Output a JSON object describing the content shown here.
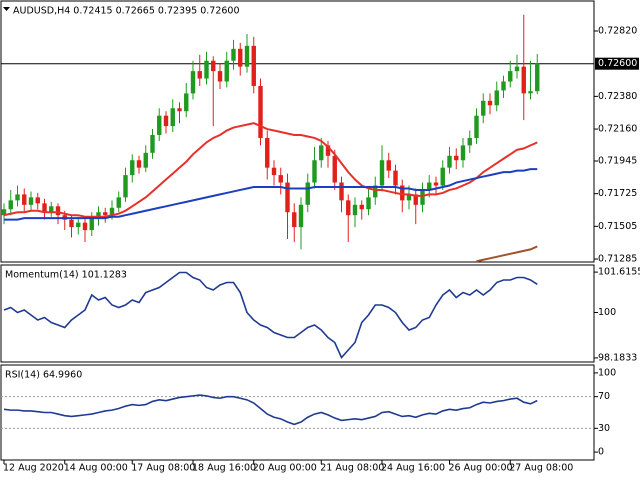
{
  "chart_data": [
    {
      "type": "candlestick",
      "title": "AUDUSD,H4  0.72415 0.72665 0.72395 0.72600",
      "up_color": "#1f9a1f",
      "down_color": "#e0201b",
      "open": [
        0.7158,
        0.7162,
        0.7168,
        0.7172,
        0.7165,
        0.717,
        0.7166,
        0.716,
        0.7164,
        0.7158,
        0.7155,
        0.715,
        0.7153,
        0.7148,
        0.7156,
        0.716,
        0.7158,
        0.7163,
        0.717,
        0.7185,
        0.7195,
        0.719,
        0.72,
        0.7212,
        0.7225,
        0.7218,
        0.723,
        0.7228,
        0.724,
        0.7255,
        0.725,
        0.7262,
        0.7255,
        0.7248,
        0.7262,
        0.727,
        0.7258,
        0.7272,
        0.7245,
        0.721,
        0.719,
        0.7185,
        0.718,
        0.716,
        0.715,
        0.7165,
        0.718,
        0.7195,
        0.7205,
        0.7198,
        0.718,
        0.7168,
        0.7158,
        0.7165,
        0.7162,
        0.717,
        0.7178,
        0.7195,
        0.7188,
        0.7178,
        0.7168,
        0.7172,
        0.7165,
        0.7175,
        0.718,
        0.7178,
        0.719,
        0.7198,
        0.7195,
        0.7205,
        0.721,
        0.7225,
        0.7235,
        0.7232,
        0.7242,
        0.7248,
        0.7255,
        0.7258,
        0.724,
        0.72415
      ],
      "high": [
        0.7166,
        0.7175,
        0.7178,
        0.7176,
        0.7174,
        0.7173,
        0.7169,
        0.7167,
        0.7166,
        0.7161,
        0.7158,
        0.7157,
        0.7156,
        0.716,
        0.7164,
        0.7163,
        0.7168,
        0.7174,
        0.719,
        0.7199,
        0.7198,
        0.7205,
        0.7216,
        0.723,
        0.7228,
        0.7236,
        0.7234,
        0.7247,
        0.7262,
        0.7266,
        0.7268,
        0.7265,
        0.726,
        0.7268,
        0.7276,
        0.7274,
        0.728,
        0.7278,
        0.725,
        0.7215,
        0.7195,
        0.719,
        0.7186,
        0.7166,
        0.717,
        0.7186,
        0.7204,
        0.721,
        0.7208,
        0.7202,
        0.7184,
        0.7172,
        0.717,
        0.7168,
        0.7176,
        0.7184,
        0.7205,
        0.72,
        0.7192,
        0.7182,
        0.7178,
        0.7176,
        0.718,
        0.7185,
        0.7184,
        0.7195,
        0.7204,
        0.7203,
        0.721,
        0.7215,
        0.723,
        0.724,
        0.724,
        0.7248,
        0.7252,
        0.7262,
        0.7266,
        0.7293,
        0.7262,
        0.72665
      ],
      "low": [
        0.7152,
        0.7158,
        0.7164,
        0.716,
        0.7161,
        0.7162,
        0.7155,
        0.7157,
        0.7152,
        0.7148,
        0.7143,
        0.7145,
        0.714,
        0.7144,
        0.7151,
        0.7153,
        0.7155,
        0.716,
        0.7167,
        0.718,
        0.7186,
        0.7187,
        0.7196,
        0.7208,
        0.7213,
        0.7214,
        0.722,
        0.7224,
        0.7236,
        0.7245,
        0.7246,
        0.7218,
        0.7243,
        0.7244,
        0.7256,
        0.7252,
        0.7254,
        0.724,
        0.7205,
        0.7182,
        0.7178,
        0.7172,
        0.7142,
        0.714,
        0.7135,
        0.716,
        0.7176,
        0.719,
        0.719,
        0.7175,
        0.716,
        0.714,
        0.715,
        0.7155,
        0.7158,
        0.7165,
        0.7174,
        0.7183,
        0.7172,
        0.716,
        0.7162,
        0.7152,
        0.716,
        0.717,
        0.7172,
        0.7175,
        0.7186,
        0.7189,
        0.719,
        0.72,
        0.7206,
        0.722,
        0.7226,
        0.7228,
        0.7237,
        0.7244,
        0.725,
        0.7222,
        0.7236,
        0.72395
      ],
      "close": [
        0.7162,
        0.7168,
        0.7172,
        0.7165,
        0.717,
        0.7166,
        0.716,
        0.7164,
        0.7158,
        0.7155,
        0.715,
        0.7153,
        0.7148,
        0.7156,
        0.716,
        0.7158,
        0.7163,
        0.717,
        0.7185,
        0.7195,
        0.719,
        0.72,
        0.7212,
        0.7225,
        0.7218,
        0.723,
        0.7228,
        0.724,
        0.7255,
        0.725,
        0.7262,
        0.7255,
        0.7248,
        0.7262,
        0.727,
        0.7258,
        0.7272,
        0.7245,
        0.721,
        0.719,
        0.7185,
        0.718,
        0.716,
        0.715,
        0.7165,
        0.718,
        0.7195,
        0.7205,
        0.7198,
        0.718,
        0.7168,
        0.7158,
        0.7165,
        0.7162,
        0.717,
        0.7178,
        0.7195,
        0.7188,
        0.7178,
        0.7168,
        0.7172,
        0.7165,
        0.7175,
        0.718,
        0.7178,
        0.719,
        0.7198,
        0.7195,
        0.7205,
        0.721,
        0.7225,
        0.7235,
        0.7232,
        0.7242,
        0.7248,
        0.7255,
        0.7258,
        0.724,
        0.72415,
        0.726
      ],
      "series": [
        {
          "color": "#e8302a",
          "values": [
            0.7158,
            0.7159,
            0.716,
            0.716,
            0.7161,
            0.7161,
            0.716,
            0.716,
            0.716,
            0.7159,
            0.7158,
            0.7158,
            0.7157,
            0.7157,
            0.7157,
            0.7157,
            0.7158,
            0.7159,
            0.7161,
            0.7164,
            0.7167,
            0.717,
            0.7174,
            0.7178,
            0.7182,
            0.7186,
            0.719,
            0.7194,
            0.7199,
            0.7203,
            0.7207,
            0.721,
            0.7212,
            0.7215,
            0.7217,
            0.7218,
            0.7219,
            0.722,
            0.7218,
            0.7216,
            0.7215,
            0.7214,
            0.7213,
            0.7212,
            0.7212,
            0.7211,
            0.721,
            0.7208,
            0.7204,
            0.7199,
            0.7193,
            0.7187,
            0.7182,
            0.7178,
            0.7176,
            0.7175,
            0.7175,
            0.7174,
            0.7173,
            0.7172,
            0.7172,
            0.7171,
            0.7171,
            0.7172,
            0.7172,
            0.7173,
            0.7175,
            0.7176,
            0.7178,
            0.718,
            0.7183,
            0.7187,
            0.719,
            0.7193,
            0.7196,
            0.7199,
            0.7202,
            0.7203,
            0.7205,
            0.7207
          ]
        },
        {
          "color": "#1c3fbf",
          "values": [
            0.7155,
            0.7155,
            0.7155,
            0.7156,
            0.7156,
            0.7156,
            0.7156,
            0.7156,
            0.7156,
            0.7156,
            0.7156,
            0.7156,
            0.7156,
            0.7156,
            0.7156,
            0.7156,
            0.7157,
            0.7157,
            0.7158,
            0.7159,
            0.716,
            0.7161,
            0.7162,
            0.7163,
            0.7164,
            0.7165,
            0.7166,
            0.7167,
            0.7168,
            0.7169,
            0.717,
            0.7171,
            0.7172,
            0.7173,
            0.7174,
            0.7175,
            0.7176,
            0.7177,
            0.7177,
            0.7177,
            0.7177,
            0.7177,
            0.7176,
            0.7176,
            0.7176,
            0.7176,
            0.7177,
            0.7177,
            0.7177,
            0.7177,
            0.7177,
            0.7177,
            0.7177,
            0.7177,
            0.7177,
            0.7177,
            0.7177,
            0.7177,
            0.7177,
            0.7176,
            0.7176,
            0.7175,
            0.7175,
            0.7175,
            0.7176,
            0.7177,
            0.7178,
            0.718,
            0.7181,
            0.7182,
            0.7183,
            0.7184,
            0.7185,
            0.7186,
            0.7187,
            0.7187,
            0.7188,
            0.7188,
            0.7189,
            0.7189
          ]
        },
        {
          "color": "#a0522d",
          "values": [
            null,
            null,
            null,
            null,
            null,
            null,
            null,
            null,
            null,
            null,
            null,
            null,
            null,
            null,
            null,
            null,
            null,
            null,
            null,
            null,
            null,
            null,
            null,
            null,
            null,
            null,
            null,
            null,
            null,
            null,
            null,
            null,
            null,
            null,
            null,
            null,
            null,
            null,
            null,
            null,
            null,
            null,
            null,
            null,
            null,
            null,
            null,
            null,
            null,
            null,
            null,
            null,
            null,
            null,
            null,
            null,
            null,
            null,
            null,
            null,
            null,
            null,
            null,
            null,
            null,
            null,
            null,
            null,
            null,
            null,
            0.7127,
            0.7128,
            0.7129,
            0.713,
            0.7131,
            0.7132,
            0.7133,
            0.7134,
            0.7135,
            0.7137
          ]
        }
      ],
      "current_price": {
        "value": 0.726,
        "label": "0.72600"
      },
      "ylim": [
        0.71265,
        0.73022
      ],
      "yticks": [
        {
          "value": 0.7282,
          "label": "0.72820"
        },
        {
          "value": 0.7238,
          "label": "0.72380"
        },
        {
          "value": 0.7216,
          "label": "0.72160"
        },
        {
          "value": 0.71945,
          "label": "0.71945"
        },
        {
          "value": 0.71725,
          "label": "0.71725"
        },
        {
          "value": 0.71505,
          "label": "0.71505"
        },
        {
          "value": 0.71285,
          "label": "0.71285"
        }
      ]
    },
    {
      "type": "line",
      "title": "Momentum(14) 101.1283",
      "color": "#1f3a93",
      "values": [
        100.1,
        100.2,
        100.0,
        100.1,
        99.9,
        99.7,
        99.8,
        99.6,
        99.5,
        99.4,
        99.7,
        99.9,
        100.1,
        100.7,
        100.5,
        100.6,
        100.3,
        100.2,
        100.3,
        100.5,
        100.4,
        100.8,
        100.9,
        101.0,
        101.2,
        101.4,
        101.6,
        101.6,
        101.4,
        101.3,
        101.0,
        100.9,
        101.1,
        101.2,
        101.2,
        100.8,
        100.0,
        99.7,
        99.5,
        99.4,
        99.2,
        99.1,
        99.0,
        99.0,
        99.2,
        99.4,
        99.5,
        99.3,
        99.0,
        98.8,
        98.2,
        98.5,
        98.8,
        99.6,
        99.9,
        100.3,
        100.3,
        100.2,
        100.0,
        99.6,
        99.3,
        99.4,
        99.7,
        99.8,
        100.3,
        100.7,
        100.9,
        100.6,
        100.8,
        100.7,
        100.9,
        100.7,
        100.9,
        101.2,
        101.3,
        101.3,
        101.4,
        101.4,
        101.3,
        101.1283
      ],
      "ylim": [
        98.02,
        101.9
      ],
      "yticks": [
        101.6155,
        100,
        98.1833
      ]
    },
    {
      "type": "line",
      "title": "RSI(14) 64.9960",
      "color": "#1f3a93",
      "values": [
        54,
        53,
        53,
        52,
        52,
        51,
        50,
        50,
        48,
        46,
        45,
        46,
        47,
        48,
        50,
        52,
        53,
        55,
        58,
        60,
        59,
        60,
        64,
        66,
        65,
        67,
        69,
        70,
        71,
        72,
        71,
        69,
        68,
        70,
        70,
        68,
        66,
        62,
        55,
        48,
        44,
        42,
        38,
        35,
        38,
        44,
        48,
        50,
        47,
        43,
        40,
        41,
        42,
        41,
        43,
        45,
        50,
        51,
        48,
        45,
        46,
        44,
        47,
        49,
        48,
        52,
        54,
        53,
        55,
        56,
        60,
        63,
        62,
        64,
        65,
        67,
        68,
        63,
        61,
        64.996
      ],
      "levels": [
        70,
        30
      ],
      "ylim": [
        -10,
        110
      ],
      "yticks": [
        100,
        70,
        30,
        0
      ],
      "categories": [
        "12 Aug 2020",
        null,
        null,
        null,
        null,
        null,
        null,
        null,
        null,
        "14 Aug 00:00",
        null,
        null,
        null,
        null,
        null,
        null,
        null,
        null,
        null,
        "17 Aug 08:00",
        null,
        null,
        null,
        null,
        null,
        null,
        null,
        null,
        "18 Aug 16:00",
        null,
        null,
        null,
        null,
        null,
        null,
        null,
        null,
        "20 Aug 00:00",
        null,
        null,
        null,
        null,
        null,
        null,
        null,
        null,
        null,
        "21 Aug 08:00",
        null,
        null,
        null,
        null,
        null,
        null,
        null,
        null,
        "24 Aug 16:00",
        null,
        null,
        null,
        null,
        null,
        null,
        null,
        null,
        null,
        "26 Aug 00:00",
        null,
        null,
        null,
        null,
        null,
        null,
        null,
        null,
        "27 Aug 08:00",
        null,
        null,
        null,
        null
      ]
    }
  ]
}
